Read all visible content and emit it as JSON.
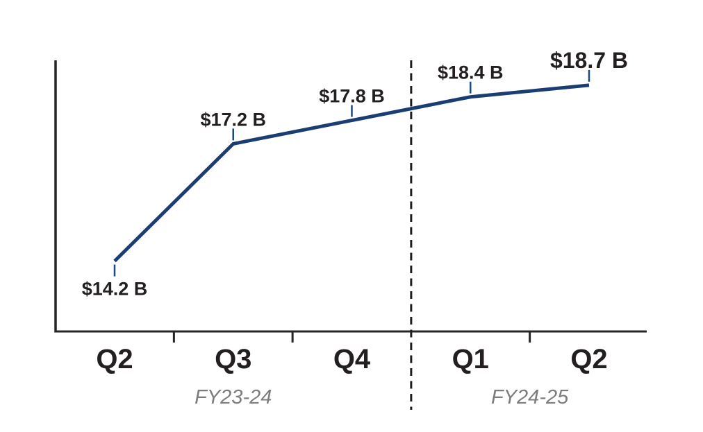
{
  "chart_data": {
    "type": "line",
    "title": "",
    "xlabel": "",
    "ylabel": "",
    "categories": [
      "Q2",
      "Q3",
      "Q4",
      "Q1",
      "Q2"
    ],
    "values": [
      14.2,
      17.2,
      17.8,
      18.4,
      18.7
    ],
    "point_labels": [
      "$14.2 B",
      "$17.2 B",
      "$17.8 B",
      "$18.4 B",
      "$18.7 B"
    ],
    "point_label_positions": [
      "below",
      "above",
      "above",
      "above",
      "above"
    ],
    "emphasized_point_index": 4,
    "fiscal_year_groups": [
      {
        "label": "FY23-24",
        "category_indexes": [
          0,
          1,
          2
        ]
      },
      {
        "label": "FY24-25",
        "category_indexes": [
          3,
          4
        ]
      }
    ],
    "divider_between_indexes": [
      2,
      3
    ],
    "divider_style": "dashed-vertical-line",
    "ylim": [
      12.4,
      19.3
    ],
    "grid": false,
    "legend_position": "none",
    "colors": {
      "series_line": "#1a3e72",
      "leader_tick": "#1a4a86",
      "axis": "#272425",
      "divider": "#1d1d1b",
      "data_label": "#231f20",
      "category_label": "#231f20",
      "fiscal_label": "#7c7c7c"
    }
  }
}
